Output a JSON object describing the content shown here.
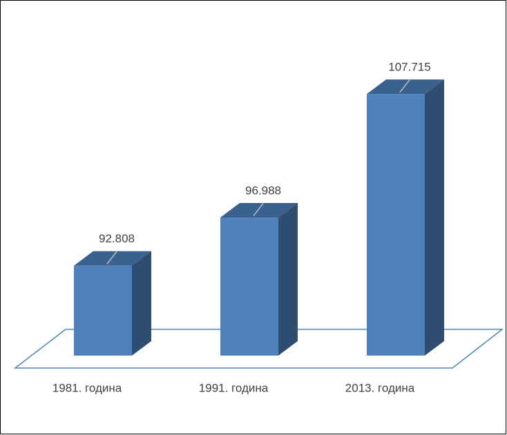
{
  "chart_data": {
    "type": "bar3d",
    "categories": [
      "1981. година",
      "1991. година",
      "2013. година"
    ],
    "values": [
      92808,
      96988,
      107715
    ],
    "value_labels": [
      "92.808",
      "96.988",
      "107.715"
    ],
    "color": "#4f81bd",
    "ylim": [
      85000,
      110000
    ]
  }
}
